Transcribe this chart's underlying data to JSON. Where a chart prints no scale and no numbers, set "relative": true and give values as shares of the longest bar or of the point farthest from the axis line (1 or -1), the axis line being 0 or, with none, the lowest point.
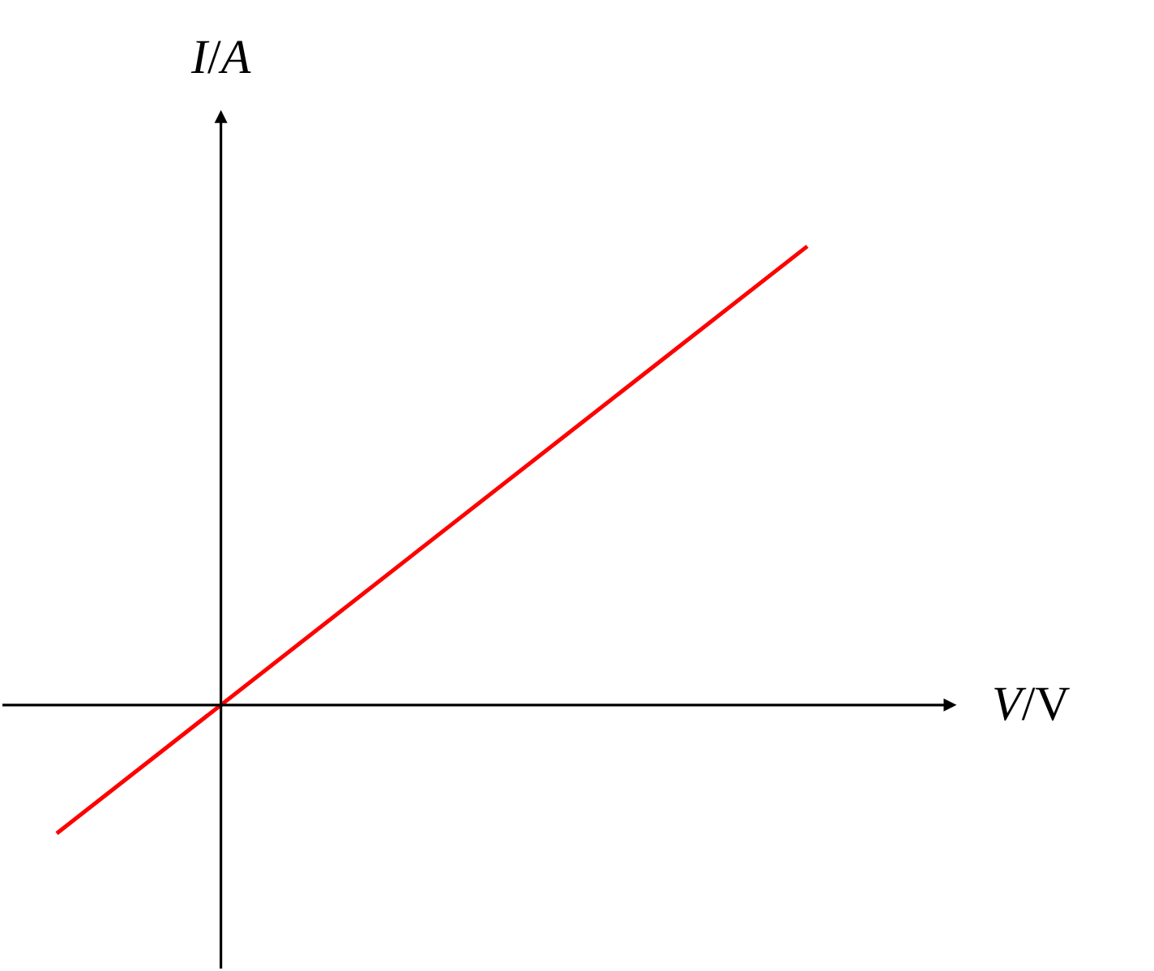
{
  "chart_data": {
    "type": "line",
    "relative": true,
    "xlabel": "V/V",
    "ylabel": "I/A",
    "categories": [
      null,
      null
    ],
    "series": [
      {
        "color": "#ff0000",
        "values": [
          -0.28,
          1
        ]
      }
    ],
    "marker": "none",
    "line_style": "solid",
    "ref_lines": [
      {
        "axis": "y",
        "value": 0,
        "color": "#000000"
      }
    ]
  }
}
